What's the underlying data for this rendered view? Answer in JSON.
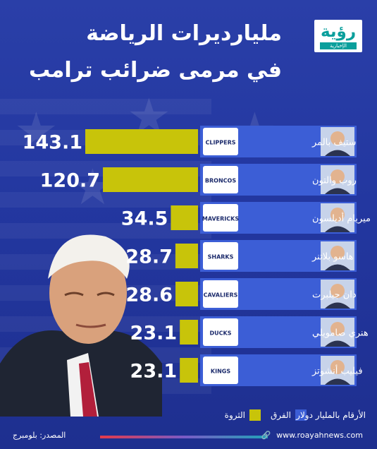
{
  "logo": {
    "main": "رؤية",
    "sub": "الإخبارية"
  },
  "header": {
    "title": "مليارديرات الرياضة",
    "subtitle": "في مرمى ضرائب ترامب"
  },
  "chart_data": {
    "type": "bar",
    "orientation": "horizontal",
    "categories": [
      "ستيف بالمر",
      "روب والتون",
      "ميريام أديلسون",
      "هاسو بلاتنر",
      "دان جيلبرت",
      "هنري صامويلي",
      "فيليب أنشوتز"
    ],
    "teams": [
      "CLIPPERS",
      "BRONCOS",
      "MAVERICKS",
      "SHARKS",
      "CAVALIERS",
      "DUCKS",
      "KINGS"
    ],
    "series": [
      {
        "name": "الثروة",
        "values": [
          143.1,
          120.7,
          34.5,
          28.7,
          28.6,
          23.1,
          23.1
        ]
      }
    ],
    "value_labels": [
      "143.1",
      "120.7",
      "34.5",
      "28.7",
      "28.6",
      "23.1",
      "23.1"
    ],
    "xlim": [
      0,
      143.1
    ],
    "legend_position": "bottom",
    "bar_color": "#c8c40a",
    "row_color": "#3c5ed6"
  },
  "legend": {
    "teams_label": "الفرق",
    "wealth_label": "الثروة",
    "teams_color": "#3c5ed6",
    "wealth_color": "#c8c40a"
  },
  "units_note": "الأرقام بالمليار دولار",
  "footer": {
    "website": "www.roayahnews.com",
    "source": "المصدر: بلومبرج"
  }
}
